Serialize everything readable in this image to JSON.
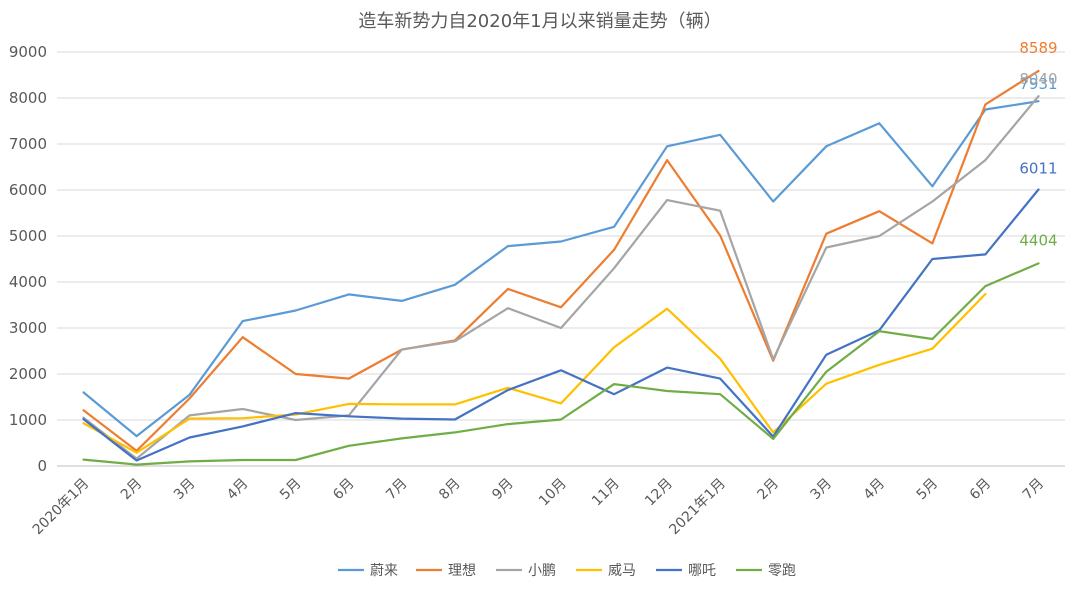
{
  "chart_data": {
    "type": "line",
    "title": "造车新势力自2020年1月以来销量走势（辆）",
    "xlabel": "",
    "ylabel": "",
    "ylim": [
      0,
      9000
    ],
    "yticks": [
      "0",
      "1000",
      "2000",
      "3000",
      "4000",
      "5000",
      "6000",
      "7000",
      "8000",
      "9000"
    ],
    "categories": [
      "2020年1月",
      "2月",
      "3月",
      "4月",
      "5月",
      "6月",
      "7月",
      "8月",
      "9月",
      "10月",
      "11月",
      "12月",
      "2021年1月",
      "2月",
      "3月",
      "4月",
      "5月",
      "6月",
      "7月"
    ],
    "grid": true,
    "legend_position": "bottom",
    "series": [
      {
        "name": "蔚来",
        "color": "#5B9BD5",
        "values": [
          1600,
          650,
          1550,
          3150,
          3380,
          3730,
          3590,
          3940,
          4780,
          4880,
          5200,
          6950,
          7200,
          5750,
          6950,
          7450,
          6080,
          7750,
          7931
        ],
        "end_label": "7931"
      },
      {
        "name": "理想",
        "color": "#ED7D31",
        "values": [
          1210,
          330,
          1470,
          2800,
          2000,
          1900,
          2530,
          2730,
          3850,
          3450,
          4700,
          6650,
          5010,
          2290,
          5050,
          5540,
          4840,
          7860,
          8589
        ],
        "end_label": "8589"
      },
      {
        "name": "小鹏",
        "color": "#A5A5A5",
        "values": [
          1050,
          160,
          1100,
          1240,
          1000,
          1100,
          2530,
          2710,
          3430,
          3000,
          4300,
          5780,
          5550,
          2320,
          4750,
          5000,
          5750,
          6650,
          8040
        ],
        "end_label": "8040"
      },
      {
        "name": "威马",
        "color": "#FFC000",
        "values": [
          930,
          290,
          1030,
          1040,
          1120,
          1350,
          1340,
          1340,
          1700,
          1360,
          2580,
          3420,
          2330,
          730,
          1790,
          2200,
          2550,
          3740,
          null
        ]
      },
      {
        "name": "哪吒",
        "color": "#4472C4",
        "values": [
          1020,
          120,
          620,
          860,
          1150,
          1080,
          1030,
          1010,
          1650,
          2080,
          1560,
          2140,
          1900,
          640,
          2420,
          2950,
          4500,
          4600,
          6011
        ],
        "end_label": "6011"
      },
      {
        "name": "零跑",
        "color": "#70AD47",
        "values": [
          140,
          30,
          100,
          130,
          130,
          440,
          600,
          730,
          910,
          1010,
          1780,
          1630,
          1560,
          590,
          2050,
          2930,
          2760,
          3910,
          4404
        ],
        "end_label": "4404"
      }
    ]
  }
}
